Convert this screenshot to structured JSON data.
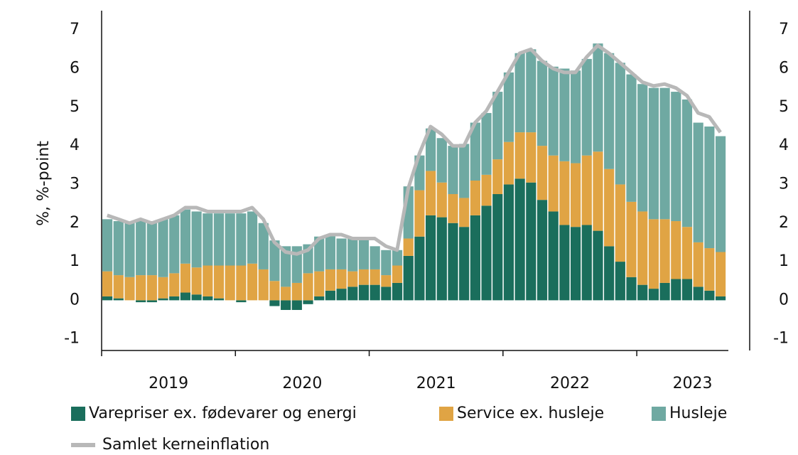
{
  "chart_data": {
    "type": "stacked_bar_line",
    "y_label": "%, %-point",
    "categories": [
      null,
      null,
      null,
      null,
      null,
      null,
      "2019",
      null,
      null,
      null,
      null,
      null,
      null,
      null,
      null,
      null,
      null,
      null,
      "2020",
      null,
      null,
      null,
      null,
      null,
      null,
      null,
      null,
      null,
      null,
      null,
      "2021",
      null,
      null,
      null,
      null,
      null,
      null,
      null,
      null,
      null,
      null,
      null,
      "2022",
      null,
      null,
      null,
      null,
      null,
      null,
      null,
      null,
      null,
      null,
      "2023",
      null,
      null
    ],
    "series": [
      {
        "name": "Varepriser ex. fødevarer og energi",
        "color": "#1a6e5c",
        "kind": "bar",
        "values": [
          0.1,
          0.05,
          0,
          -0.05,
          -0.05,
          0.05,
          0.1,
          0.2,
          0.15,
          0.1,
          0.05,
          0,
          -0.05,
          0,
          0,
          -0.15,
          -0.25,
          -0.25,
          -0.1,
          0.1,
          0.25,
          0.3,
          0.35,
          0.4,
          0.4,
          0.35,
          0.45,
          1.15,
          1.65,
          2.2,
          2.15,
          2.0,
          1.9,
          2.2,
          2.45,
          2.75,
          3.0,
          3.15,
          3.05,
          2.6,
          2.3,
          1.95,
          1.9,
          1.95,
          1.8,
          1.4,
          1.0,
          0.6,
          0.4,
          0.3,
          0.45,
          0.55,
          0.55,
          0.35,
          0.25,
          0.1
        ]
      },
      {
        "name": "Service ex. husleje",
        "color": "#e0a444",
        "kind": "bar",
        "values": [
          0.65,
          0.6,
          0.6,
          0.65,
          0.65,
          0.55,
          0.6,
          0.75,
          0.7,
          0.8,
          0.85,
          0.9,
          0.9,
          0.95,
          0.8,
          0.5,
          0.35,
          0.45,
          0.7,
          0.65,
          0.55,
          0.5,
          0.4,
          0.4,
          0.4,
          0.3,
          0.45,
          0.45,
          1.2,
          1.15,
          0.9,
          0.75,
          0.75,
          0.9,
          0.8,
          0.9,
          1.1,
          1.2,
          1.3,
          1.4,
          1.45,
          1.65,
          1.65,
          1.8,
          2.05,
          2.0,
          2.0,
          1.95,
          1.9,
          1.8,
          1.65,
          1.5,
          1.35,
          1.15,
          1.1,
          1.15
        ]
      },
      {
        "name": "Husleje",
        "color": "#6fa9a2",
        "kind": "bar",
        "values": [
          1.35,
          1.4,
          1.4,
          1.45,
          1.4,
          1.5,
          1.5,
          1.4,
          1.45,
          1.35,
          1.35,
          1.35,
          1.35,
          1.35,
          1.2,
          1.05,
          1.05,
          0.95,
          0.75,
          0.9,
          0.9,
          0.8,
          0.85,
          0.8,
          0.6,
          0.65,
          0.4,
          1.35,
          0.9,
          1.1,
          1.15,
          1.25,
          1.4,
          1.5,
          1.6,
          1.75,
          1.8,
          2.05,
          2.15,
          2.2,
          2.3,
          2.4,
          2.4,
          2.5,
          2.8,
          3.0,
          3.15,
          3.3,
          3.3,
          3.4,
          3.4,
          3.35,
          3.3,
          3.1,
          3.15,
          3.0
        ]
      },
      {
        "name": "Samlet kerneinflation",
        "color": "#b8b8b8",
        "kind": "line",
        "values": [
          2.2,
          2.1,
          2.0,
          2.1,
          2.0,
          2.1,
          2.2,
          2.4,
          2.4,
          2.3,
          2.3,
          2.3,
          2.3,
          2.4,
          2.1,
          1.5,
          1.25,
          1.2,
          1.3,
          1.6,
          1.7,
          1.7,
          1.6,
          1.6,
          1.6,
          1.4,
          1.3,
          2.9,
          3.8,
          4.5,
          4.3,
          4.0,
          4.0,
          4.6,
          4.9,
          5.4,
          5.9,
          6.4,
          6.5,
          6.2,
          6.0,
          5.9,
          5.9,
          6.3,
          6.6,
          6.4,
          6.15,
          5.9,
          5.65,
          5.55,
          5.6,
          5.5,
          5.3,
          4.85,
          4.75,
          4.35
        ]
      }
    ],
    "ylim": [
      -1.3,
      7.5
    ],
    "yticks": [
      -1,
      0,
      1,
      2,
      3,
      4,
      5,
      6,
      7
    ],
    "y2lim": [
      -1.3,
      7.5
    ],
    "y2ticks": [
      -1,
      0,
      1,
      2,
      3,
      4,
      5,
      6,
      7
    ],
    "legend": "bottom"
  }
}
